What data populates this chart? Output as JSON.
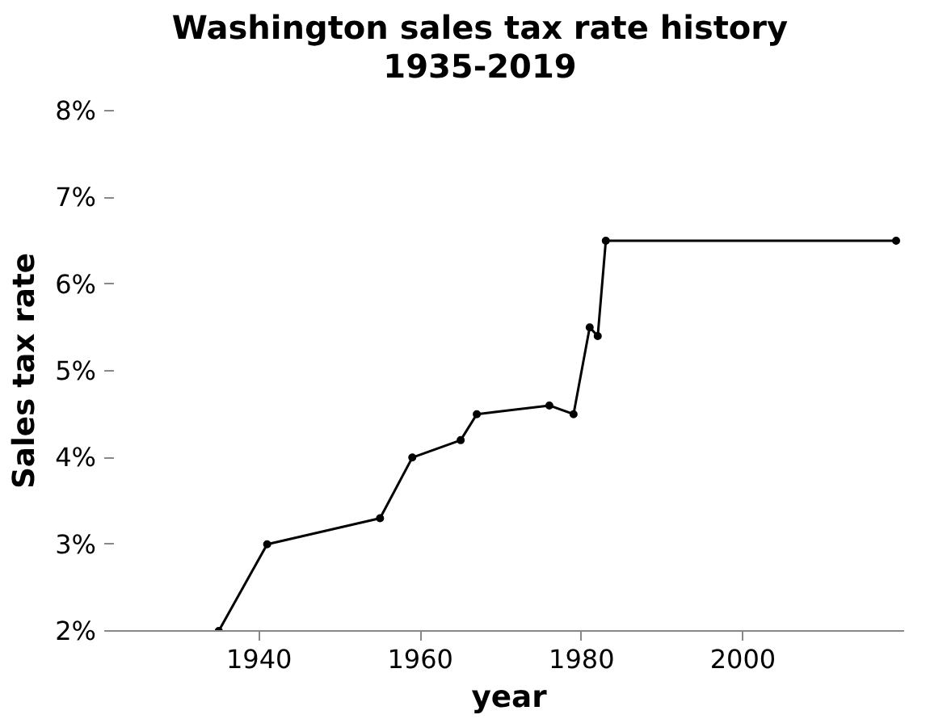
{
  "chart_data": {
    "type": "line",
    "title": "Washington sales tax rate history\n1935-2019",
    "xlabel": "year",
    "ylabel": "Sales tax rate",
    "x": [
      1935,
      1941,
      1955,
      1959,
      1965,
      1967,
      1976,
      1979,
      1981,
      1982,
      1983,
      2019
    ],
    "series": [
      {
        "color": "#000000",
        "values": [
          2.0,
          3.0,
          3.3,
          4.0,
          4.2,
          4.5,
          4.6,
          4.5,
          5.5,
          5.4,
          6.5,
          6.5
        ]
      }
    ],
    "xlim": [
      1922,
      2020
    ],
    "xticks": [
      1940,
      1960,
      1980,
      2000
    ],
    "ylim": [
      2,
      8
    ],
    "yticks": [
      {
        "value": 2,
        "label": "2%"
      },
      {
        "value": 3,
        "label": "3%"
      },
      {
        "value": 4,
        "label": "4%"
      },
      {
        "value": 5,
        "label": "5%"
      },
      {
        "value": 6,
        "label": "6%"
      },
      {
        "value": 7,
        "label": "7%"
      },
      {
        "value": 8,
        "label": "8%"
      }
    ],
    "grid": false,
    "marker": "circle",
    "line_style": "solid"
  }
}
